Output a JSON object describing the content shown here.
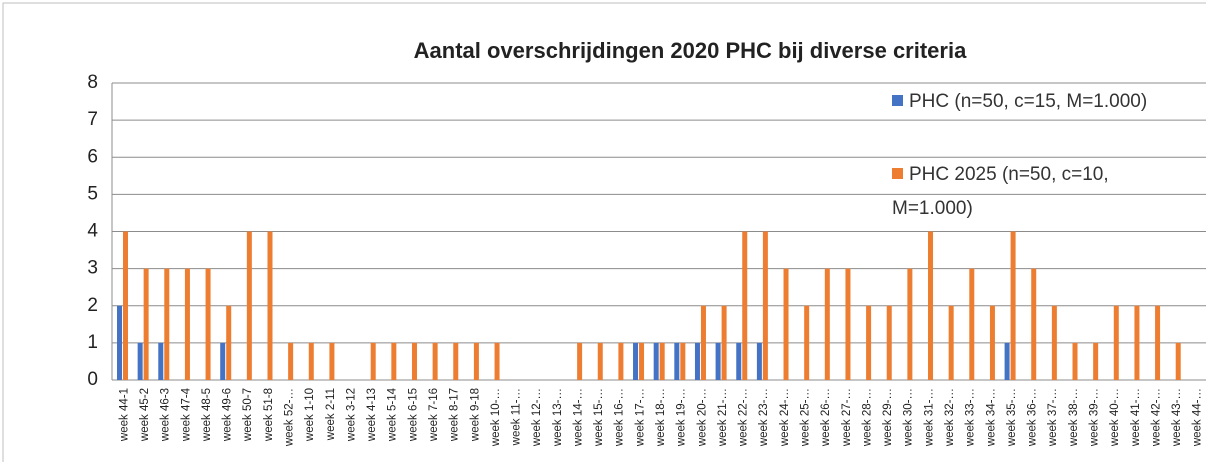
{
  "chart_data": {
    "type": "bar",
    "title": "Aantal overschrijdingen 2020 PHC bij diverse criteria",
    "categories": [
      "week 44-1",
      "week 45-2",
      "week 46-3",
      "week 47-4",
      "week 48-5",
      "week 49-6",
      "week 50-7",
      "week 51-8",
      "week 52-…",
      "week 1-10",
      "week 2-11",
      "week 3-12",
      "week 4-13",
      "week 5-14",
      "week 6-15",
      "week 7-16",
      "week 8-17",
      "week 9-18",
      "week 10-…",
      "week 11-…",
      "week 12-…",
      "week 13-…",
      "week 14-…",
      "week 15-…",
      "week 16-…",
      "week 17-…",
      "week 18-…",
      "week 19-…",
      "week 20-…",
      "week 21-…",
      "week 22-…",
      "week 23-…",
      "week 24-…",
      "week 25-…",
      "week 26-…",
      "week 27-…",
      "week 28-…",
      "week 29-…",
      "week 30-…",
      "week 31-…",
      "week 32-…",
      "week 33-…",
      "week 34-…",
      "week 35-…",
      "week 36-…",
      "week 37-…",
      "week 38-…",
      "week 39-…",
      "week 40-…",
      "week 41-…",
      "week 42-…",
      "week 43-…",
      "week 44-…"
    ],
    "series": [
      {
        "name": "PHC (n=50, c=15, M=1.000)",
        "color": "#4472c4",
        "values": [
          2,
          1,
          1,
          0,
          0,
          1,
          0,
          0,
          0,
          0,
          0,
          0,
          0,
          0,
          0,
          0,
          0,
          0,
          0,
          0,
          0,
          0,
          0,
          0,
          0,
          1,
          1,
          1,
          1,
          1,
          1,
          1,
          0,
          0,
          0,
          0,
          0,
          0,
          0,
          0,
          0,
          0,
          0,
          1,
          0,
          0,
          0,
          0,
          0,
          0,
          0,
          0,
          0
        ]
      },
      {
        "name": "PHC 2025 (n=50, c=10, M=1.000)",
        "color": "#ed7d31",
        "values": [
          4,
          3,
          3,
          3,
          3,
          2,
          4,
          4,
          1,
          1,
          1,
          0,
          1,
          1,
          1,
          1,
          1,
          1,
          1,
          0,
          0,
          0,
          1,
          1,
          1,
          1,
          1,
          1,
          2,
          2,
          4,
          4,
          3,
          2,
          3,
          3,
          2,
          2,
          3,
          4,
          2,
          3,
          2,
          4,
          3,
          2,
          1,
          1,
          2,
          2,
          2,
          1,
          0
        ]
      }
    ],
    "ylim": [
      0,
      8
    ],
    "yticks": [
      0,
      1,
      2,
      3,
      4,
      5,
      6,
      7,
      8
    ],
    "grid": true
  }
}
